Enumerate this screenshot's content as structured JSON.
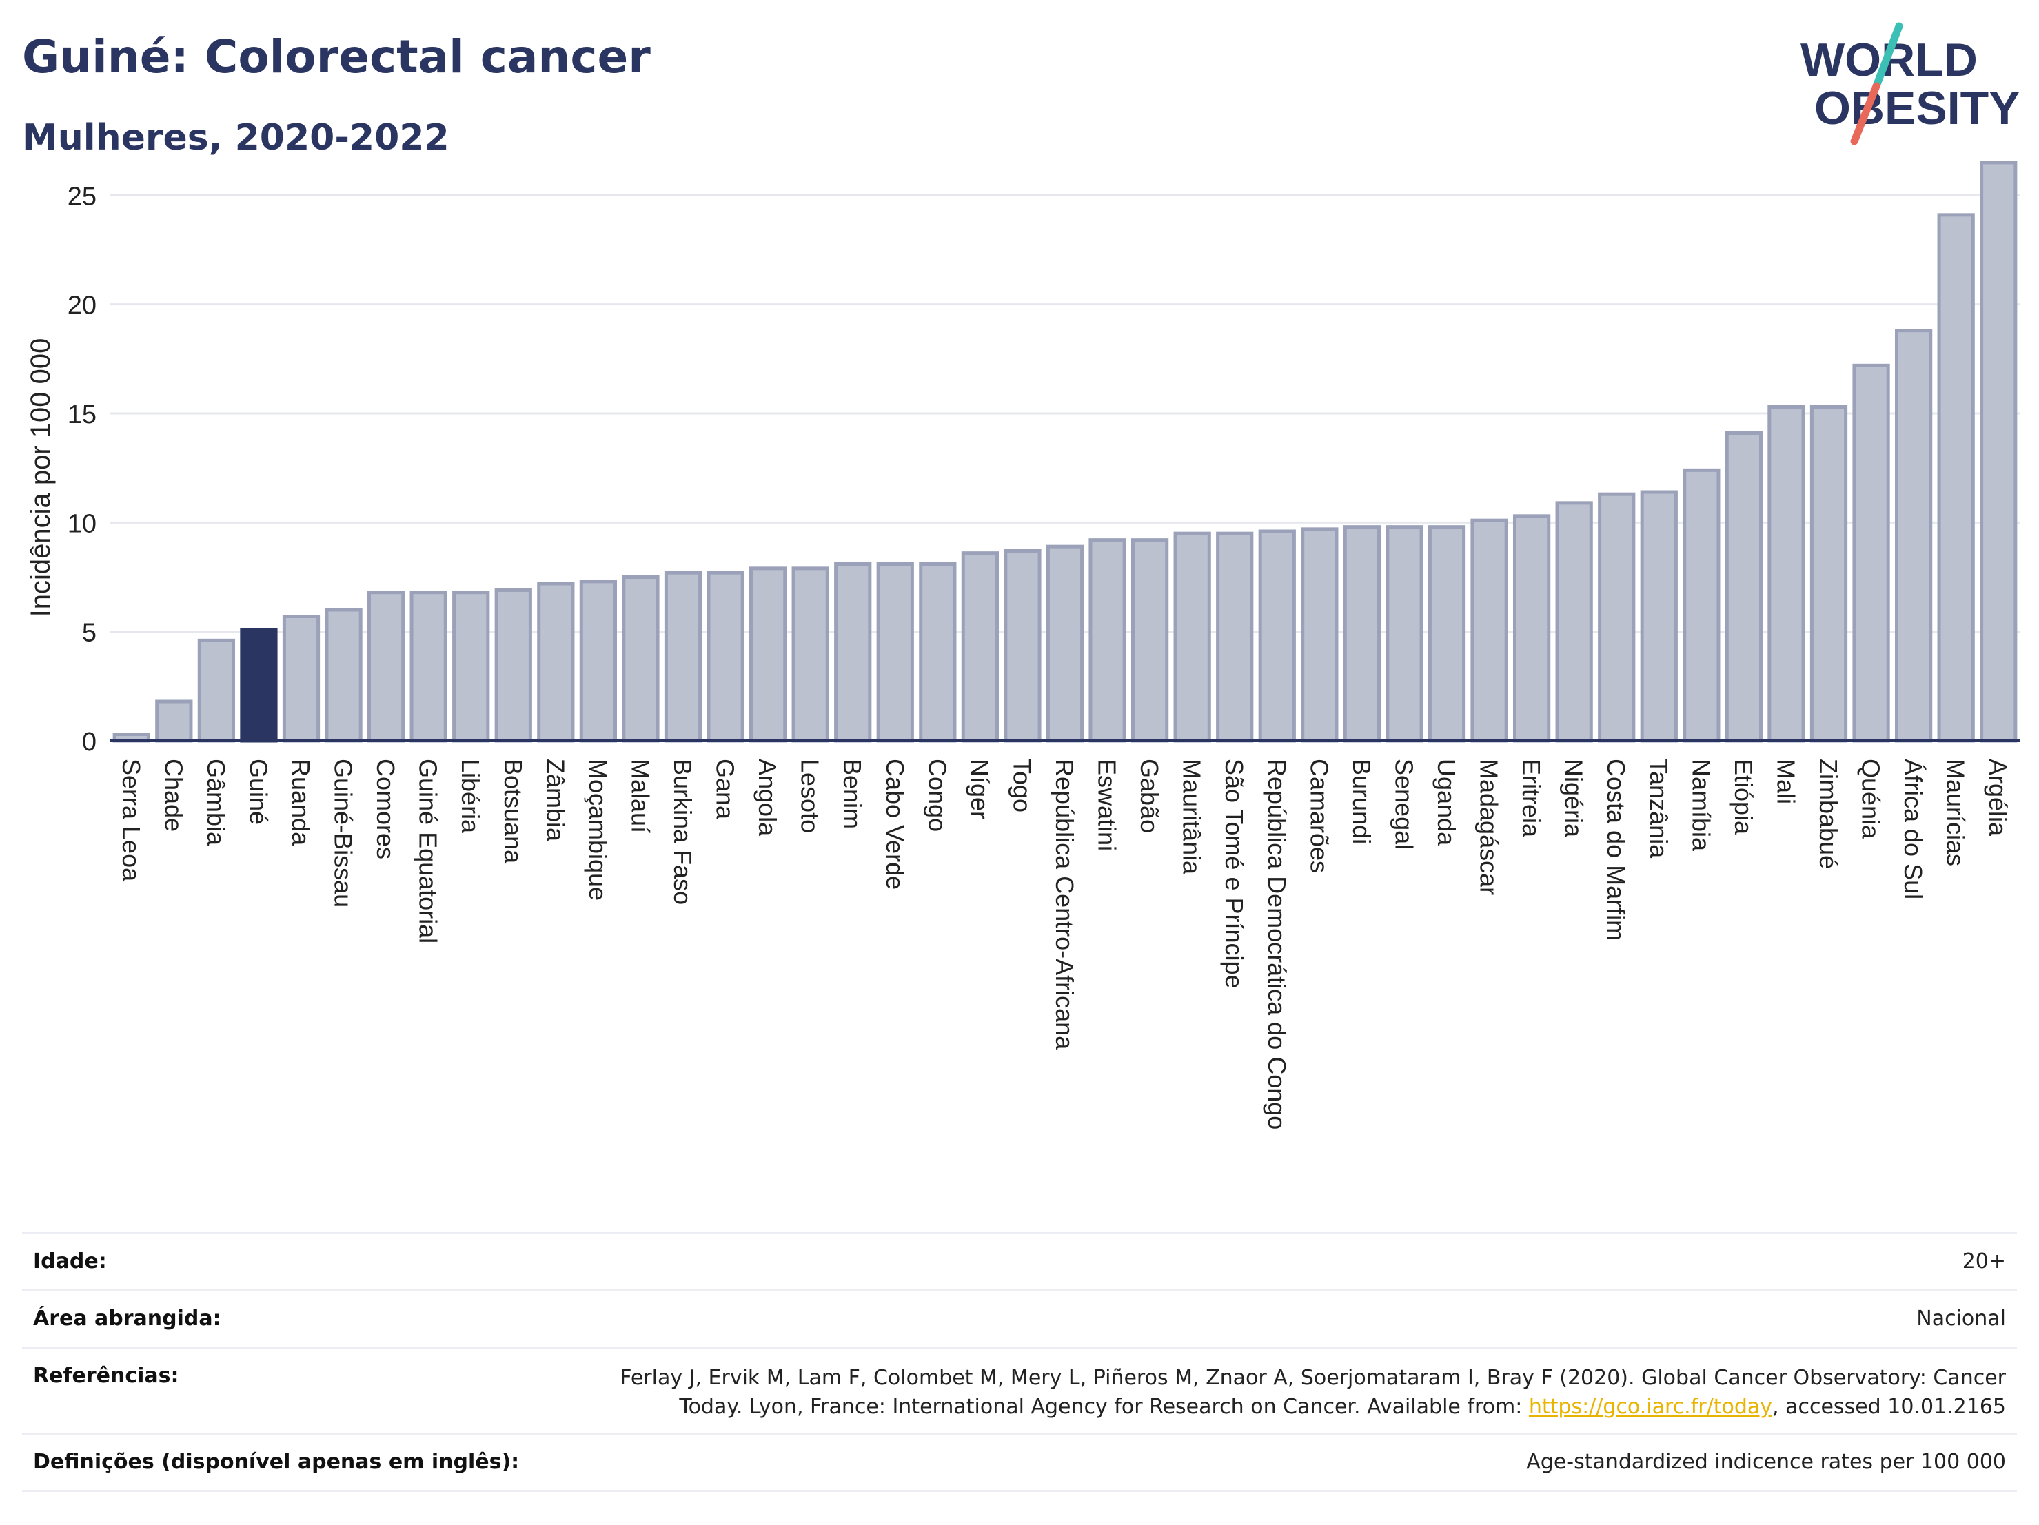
{
  "header": {
    "title": "Guiné: Colorectal cancer",
    "subtitle": "Mulheres, 2020-2022"
  },
  "logo": {
    "line1": "WORLD",
    "line2": "OBESITY",
    "colors": {
      "text": "#2a3561",
      "slash_top": "#3cc0b5",
      "slash_bottom": "#e8685a"
    }
  },
  "colors": {
    "bar_default": "#bcc1d0",
    "bar_default_stroke": "#9aa1b8",
    "bar_highlight": "#2a3561",
    "axis": "#2a3561",
    "grid": "#e6e8ee"
  },
  "chart_data": {
    "type": "bar",
    "ylabel": "Incidência por 100 000",
    "ylim": [
      0,
      27
    ],
    "yticks": [
      0,
      5,
      10,
      15,
      20,
      25
    ],
    "grid": true,
    "highlight": "Guiné",
    "categories": [
      "Serra Leoa",
      "Chade",
      "Gâmbia",
      "Guiné",
      "Ruanda",
      "Guiné-Bissau",
      "Comores",
      "Guiné Equatorial",
      "Libéria",
      "Botsuana",
      "Zâmbia",
      "Moçambique",
      "Malauí",
      "Burkina Faso",
      "Gana",
      "Angola",
      "Lesoto",
      "Benim",
      "Cabo Verde",
      "Congo",
      "Níger",
      "Togo",
      "República Centro-Africana",
      "Eswatini",
      "Gabão",
      "Mauritânia",
      "São Tomé e Príncipe",
      "República Democrática do Congo",
      "Camarões",
      "Burundi",
      "Senegal",
      "Uganda",
      "Madagáscar",
      "Eritreia",
      "Nigéria",
      "Costa do Marfim",
      "Tanzânia",
      "Namíbia",
      "Etiópia",
      "Mali",
      "Zimbabué",
      "Quénia",
      "África do Sul",
      "Maurícias",
      "Argélia"
    ],
    "values": [
      0.3,
      1.8,
      4.6,
      5.1,
      5.7,
      6.0,
      6.8,
      6.8,
      6.8,
      6.9,
      7.2,
      7.3,
      7.5,
      7.7,
      7.7,
      7.9,
      7.9,
      8.1,
      8.1,
      8.1,
      8.6,
      8.7,
      8.9,
      9.2,
      9.2,
      9.5,
      9.5,
      9.6,
      9.7,
      9.8,
      9.8,
      9.8,
      10.1,
      10.3,
      10.9,
      11.3,
      11.4,
      12.4,
      14.1,
      15.3,
      15.3,
      17.2,
      18.8,
      24.1,
      26.5
    ]
  },
  "info": {
    "age_label": "Idade:",
    "age_value": "20+",
    "area_label": "Área abrangida:",
    "area_value": "Nacional",
    "refs_label": "Referências:",
    "refs_line1": "Ferlay J, Ervik M, Lam F, Colombet M, Mery L, Piñeros M, Znaor A, Soerjomataram I, Bray F (2020). Global Cancer Observatory: Cancer",
    "refs_line2_pre": "Today. Lyon, France: International Agency for Research on Cancer. Available from: ",
    "refs_link": "https://gco.iarc.fr/today",
    "refs_line2_post": ", accessed 10.01.2165",
    "defs_label": "Definições (disponível apenas em inglês):",
    "defs_value": "Age-standardized indicence rates per 100 000"
  }
}
